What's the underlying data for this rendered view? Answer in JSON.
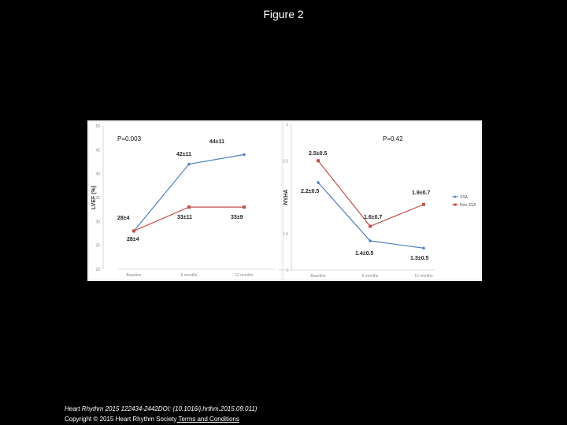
{
  "slide": {
    "title": "Figure 2",
    "citation": "Heart Rhythm 2015 122434-2442DOI: (10.1016/j.hrthm.2015.09.011)",
    "copyright_prefix": "Copyright © 2015 Heart Rhythm Society",
    "copyright_link": " Terms and Conditions"
  },
  "colors": {
    "ssa": "#4f81bd",
    "non_ssa": "#c0504d"
  },
  "chart_data": [
    {
      "type": "line",
      "ylabel": "LVEF (%)",
      "ylim": [
        20,
        50
      ],
      "yticks": [
        "20",
        "25",
        "30",
        "35",
        "40",
        "45",
        "50"
      ],
      "categories": [
        "Baseline",
        "6 months",
        "12 months"
      ],
      "p_value": "P=0.003",
      "series": [
        {
          "key": "ssa",
          "values": [
            28,
            42,
            44
          ],
          "labels": [
            "28±4",
            "42±11",
            "44±11"
          ]
        },
        {
          "key": "non_ssa",
          "values": [
            28,
            33,
            33
          ],
          "labels": [
            "28±4",
            "33±11",
            "33±9"
          ]
        }
      ]
    },
    {
      "type": "line",
      "ylabel": "NYHA",
      "ylim": [
        1,
        3
      ],
      "yticks": [
        "1",
        "1.5",
        "2",
        "2.5",
        "3"
      ],
      "categories": [
        "Baseline",
        "6 months",
        "12 months"
      ],
      "p_value": "P=0.42",
      "legend": [
        "SSA",
        "Non SSA"
      ],
      "legend_position": "right",
      "series": [
        {
          "key": "ssa",
          "name": "SSA",
          "values": [
            2.2,
            1.4,
            1.3
          ],
          "labels": [
            "2.2±0.5",
            "1.4±0.5",
            "1.3±0.5"
          ]
        },
        {
          "key": "non_ssa",
          "name": "Non SSA",
          "values": [
            2.5,
            1.6,
            1.9
          ],
          "labels": [
            "2.5±0.5",
            "1.6±0.7",
            "1.9±0.7"
          ]
        }
      ]
    }
  ]
}
